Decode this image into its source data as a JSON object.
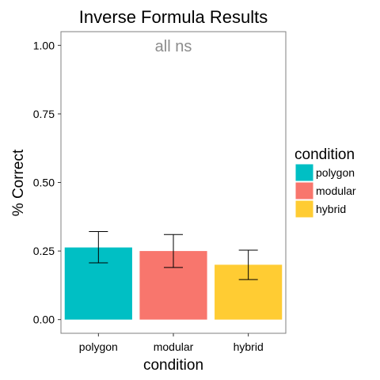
{
  "chart_data": {
    "type": "bar",
    "title": "Inverse Formula Results",
    "xlabel": "condition",
    "ylabel": "% Correct",
    "annotation": "all ns",
    "categories": [
      "polygon",
      "modular",
      "hybrid"
    ],
    "values": [
      0.263,
      0.25,
      0.2
    ],
    "error_low": [
      0.207,
      0.19,
      0.146
    ],
    "error_high": [
      0.321,
      0.31,
      0.253
    ],
    "colors": [
      "#00BFC4",
      "#F8766D",
      "#FFCC33"
    ],
    "yticks": [
      0.0,
      0.25,
      0.5,
      0.75,
      1.0
    ],
    "ytick_labels": [
      "0.00",
      "0.25",
      "0.50",
      "0.75",
      "1.00"
    ],
    "ylim": [
      -0.05,
      1.05
    ],
    "grid": false,
    "legend": {
      "title": "condition",
      "placement": "right",
      "entries": [
        "polygon",
        "modular",
        "hybrid"
      ]
    }
  }
}
